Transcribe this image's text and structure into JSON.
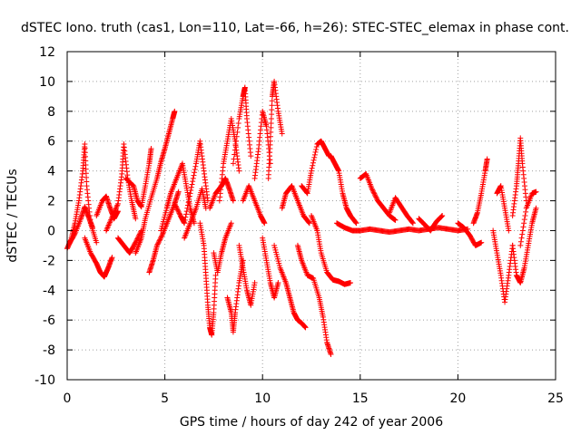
{
  "chart_data": {
    "type": "scatter",
    "title": "dSTEC Iono. truth (cas1, Lon=110, Lat=-66, h=26): STEC-STEC_elemax in phase cont.",
    "xlabel": "GPS time / hours of day 242 of year 2006",
    "ylabel": "dSTEC  / TECUs",
    "xlim": [
      0,
      25
    ],
    "ylim": [
      -10,
      12
    ],
    "x_ticks": [
      0,
      5,
      10,
      15,
      20,
      25
    ],
    "y_ticks": [
      -10,
      -8,
      -6,
      -4,
      -2,
      0,
      2,
      4,
      6,
      8,
      10,
      12
    ],
    "x_tick_labels": [
      "0",
      "5",
      "10",
      "15",
      "20",
      "25"
    ],
    "y_tick_labels": [
      "-10",
      "-8",
      "-6",
      "-4",
      "-2",
      "0",
      "2",
      "4",
      "6",
      "8",
      "10",
      "12"
    ],
    "grid": true,
    "marker": "+",
    "series_color": "#ff0000",
    "series": [
      {
        "tracks": [
          [
            [
              0.0,
              -1.2
            ],
            [
              0.2,
              -0.6
            ],
            [
              0.4,
              0.5
            ],
            [
              0.6,
              2.0
            ],
            [
              0.8,
              4.0
            ],
            [
              0.9,
              5.8
            ],
            [
              1.0,
              3.0
            ],
            [
              1.2,
              0.5
            ],
            [
              1.5,
              -0.8
            ]
          ],
          [
            [
              0.1,
              -0.9
            ],
            [
              0.4,
              -0.2
            ],
            [
              0.7,
              0.8
            ],
            [
              0.9,
              1.6
            ],
            [
              1.1,
              0.9
            ],
            [
              1.3,
              0.2
            ]
          ],
          [
            [
              0.9,
              -0.5
            ],
            [
              1.2,
              -1.5
            ],
            [
              1.5,
              -2.2
            ],
            [
              1.7,
              -2.8
            ],
            [
              1.9,
              -3.1
            ],
            [
              2.1,
              -2.5
            ],
            [
              2.3,
              -1.8
            ]
          ],
          [
            [
              1.5,
              1.0
            ],
            [
              1.8,
              2.0
            ],
            [
              2.0,
              2.3
            ],
            [
              2.2,
              1.5
            ],
            [
              2.4,
              0.8
            ],
            [
              2.6,
              1.3
            ]
          ],
          [
            [
              2.0,
              0.0
            ],
            [
              2.3,
              0.9
            ],
            [
              2.6,
              1.8
            ],
            [
              2.8,
              3.8
            ],
            [
              2.9,
              5.8
            ],
            [
              3.1,
              3.5
            ],
            [
              3.3,
              2.0
            ],
            [
              3.5,
              0.8
            ]
          ],
          [
            [
              2.6,
              -0.5
            ],
            [
              2.9,
              -1.0
            ],
            [
              3.2,
              -1.5
            ],
            [
              3.5,
              -0.8
            ],
            [
              3.8,
              0.0
            ]
          ],
          [
            [
              3.0,
              3.5
            ],
            [
              3.4,
              3.0
            ],
            [
              3.6,
              2.0
            ],
            [
              3.8,
              1.6
            ],
            [
              4.0,
              3.0
            ],
            [
              4.2,
              4.5
            ],
            [
              4.3,
              5.5
            ]
          ],
          [
            [
              3.5,
              -1.5
            ],
            [
              3.8,
              -0.5
            ],
            [
              4.0,
              0.8
            ],
            [
              4.3,
              2.2
            ],
            [
              4.6,
              3.5
            ],
            [
              4.8,
              4.6
            ],
            [
              5.0,
              5.5
            ],
            [
              5.2,
              6.5
            ],
            [
              5.4,
              7.5
            ],
            [
              5.5,
              8.0
            ]
          ],
          [
            [
              4.2,
              -2.8
            ],
            [
              4.4,
              -2.0
            ],
            [
              4.6,
              -1.0
            ],
            [
              4.9,
              -0.2
            ],
            [
              5.2,
              0.8
            ],
            [
              5.5,
              1.8
            ],
            [
              5.7,
              2.6
            ]
          ],
          [
            [
              4.8,
              0.0
            ],
            [
              5.1,
              1.5
            ],
            [
              5.3,
              2.5
            ],
            [
              5.6,
              3.5
            ],
            [
              5.9,
              4.5
            ],
            [
              6.1,
              3.0
            ],
            [
              6.3,
              1.5
            ],
            [
              6.5,
              0.5
            ]
          ],
          [
            [
              5.5,
              1.8
            ],
            [
              5.8,
              1.0
            ],
            [
              6.0,
              0.5
            ],
            [
              6.3,
              2.5
            ],
            [
              6.6,
              4.5
            ],
            [
              6.8,
              6.0
            ],
            [
              7.0,
              4.0
            ],
            [
              7.2,
              2.0
            ]
          ],
          [
            [
              6.0,
              -0.5
            ],
            [
              6.3,
              0.5
            ],
            [
              6.6,
              1.5
            ],
            [
              6.9,
              2.8
            ],
            [
              7.1,
              1.5
            ]
          ],
          [
            [
              6.8,
              0.5
            ],
            [
              7.0,
              -1.0
            ],
            [
              7.1,
              -3.0
            ],
            [
              7.2,
              -5.0
            ],
            [
              7.3,
              -6.5
            ],
            [
              7.4,
              -7.0
            ],
            [
              7.5,
              -5.5
            ],
            [
              7.6,
              -3.0
            ]
          ],
          [
            [
              7.3,
              1.5
            ],
            [
              7.6,
              2.5
            ],
            [
              7.9,
              3.0
            ],
            [
              8.1,
              3.5
            ],
            [
              8.3,
              2.8
            ],
            [
              8.5,
              2.0
            ]
          ],
          [
            [
              7.5,
              -1.5
            ],
            [
              7.7,
              -2.8
            ],
            [
              7.9,
              -1.5
            ],
            [
              8.1,
              -0.5
            ],
            [
              8.4,
              0.5
            ]
          ],
          [
            [
              7.8,
              2.0
            ],
            [
              8.0,
              4.5
            ],
            [
              8.2,
              6.0
            ],
            [
              8.4,
              7.5
            ],
            [
              8.6,
              6.0
            ],
            [
              8.8,
              4.0
            ]
          ],
          [
            [
              8.2,
              -4.5
            ],
            [
              8.4,
              -5.5
            ],
            [
              8.5,
              -6.8
            ],
            [
              8.6,
              -5.5
            ],
            [
              8.8,
              -3.5
            ],
            [
              9.0,
              -2.0
            ]
          ],
          [
            [
              8.5,
              4.5
            ],
            [
              8.8,
              7.5
            ],
            [
              9.0,
              9.0
            ],
            [
              9.1,
              9.6
            ],
            [
              9.2,
              7.5
            ],
            [
              9.4,
              5.0
            ]
          ],
          [
            [
              8.8,
              -1.0
            ],
            [
              9.0,
              -2.5
            ],
            [
              9.2,
              -4.0
            ],
            [
              9.4,
              -5.0
            ],
            [
              9.6,
              -3.5
            ]
          ],
          [
            [
              9.0,
              2.0
            ],
            [
              9.3,
              3.0
            ],
            [
              9.6,
              2.0
            ],
            [
              9.9,
              1.0
            ],
            [
              10.1,
              0.5
            ]
          ],
          [
            [
              9.6,
              3.5
            ],
            [
              9.8,
              5.5
            ],
            [
              10.0,
              8.0
            ],
            [
              10.2,
              7.0
            ],
            [
              10.4,
              4.5
            ]
          ],
          [
            [
              10.0,
              -0.5
            ],
            [
              10.2,
              -2.0
            ],
            [
              10.4,
              -3.5
            ],
            [
              10.6,
              -4.5
            ],
            [
              10.8,
              -3.5
            ]
          ],
          [
            [
              10.3,
              3.5
            ],
            [
              10.4,
              6.0
            ],
            [
              10.5,
              9.0
            ],
            [
              10.6,
              10.0
            ],
            [
              10.8,
              8.0
            ],
            [
              11.0,
              6.5
            ]
          ],
          [
            [
              10.6,
              -1.0
            ],
            [
              10.9,
              -2.5
            ],
            [
              11.2,
              -3.5
            ],
            [
              11.4,
              -4.5
            ],
            [
              11.6,
              -5.5
            ],
            [
              11.8,
              -6.0
            ],
            [
              12.0,
              -6.2
            ],
            [
              12.2,
              -6.5
            ]
          ],
          [
            [
              11.0,
              1.5
            ],
            [
              11.2,
              2.5
            ],
            [
              11.5,
              3.0
            ],
            [
              11.8,
              2.0
            ],
            [
              12.1,
              1.0
            ],
            [
              12.4,
              0.5
            ]
          ],
          [
            [
              11.8,
              -1.0
            ],
            [
              12.0,
              -2.0
            ],
            [
              12.3,
              -3.0
            ],
            [
              12.6,
              -3.2
            ],
            [
              12.9,
              -4.5
            ],
            [
              13.1,
              -5.8
            ],
            [
              13.3,
              -7.5
            ],
            [
              13.5,
              -8.3
            ]
          ],
          [
            [
              12.0,
              3.0
            ],
            [
              12.3,
              2.5
            ],
            [
              12.5,
              4.0
            ],
            [
              12.8,
              5.8
            ],
            [
              13.0,
              6.0
            ],
            [
              13.2,
              5.5
            ],
            [
              13.4,
              5.0
            ]
          ],
          [
            [
              12.5,
              1.0
            ],
            [
              12.8,
              0.0
            ],
            [
              13.0,
              -1.5
            ],
            [
              13.3,
              -2.8
            ],
            [
              13.6,
              -3.3
            ],
            [
              13.9,
              -3.4
            ],
            [
              14.2,
              -3.6
            ],
            [
              14.5,
              -3.5
            ]
          ],
          [
            [
              13.5,
              5.0
            ],
            [
              13.7,
              4.5
            ],
            [
              13.9,
              4.0
            ],
            [
              14.1,
              2.5
            ],
            [
              14.3,
              1.5
            ],
            [
              14.5,
              1.0
            ],
            [
              14.8,
              0.5
            ]
          ],
          [
            [
              13.8,
              0.5
            ],
            [
              14.2,
              0.2
            ],
            [
              14.6,
              0.0
            ],
            [
              15.0,
              0.0
            ],
            [
              15.5,
              0.1
            ],
            [
              16.0,
              0.0
            ],
            [
              16.5,
              -0.1
            ],
            [
              17.0,
              0.0
            ],
            [
              17.5,
              0.1
            ],
            [
              18.0,
              0.0
            ],
            [
              18.5,
              0.1
            ],
            [
              19.0,
              0.2
            ],
            [
              19.5,
              0.1
            ],
            [
              20.0,
              0.0
            ],
            [
              20.5,
              0.1
            ]
          ],
          [
            [
              15.0,
              3.5
            ],
            [
              15.3,
              3.8
            ],
            [
              15.6,
              2.8
            ],
            [
              15.9,
              2.0
            ],
            [
              16.2,
              1.5
            ],
            [
              16.5,
              1.0
            ],
            [
              16.8,
              0.7
            ]
          ],
          [
            [
              16.5,
              1.2
            ],
            [
              16.8,
              2.2
            ],
            [
              17.1,
              1.6
            ],
            [
              17.4,
              1.0
            ],
            [
              17.7,
              0.5
            ]
          ],
          [
            [
              18.0,
              0.8
            ],
            [
              18.3,
              0.4
            ],
            [
              18.6,
              0.0
            ],
            [
              18.9,
              0.6
            ],
            [
              19.2,
              1.0
            ]
          ],
          [
            [
              20.0,
              0.5
            ],
            [
              20.3,
              0.2
            ],
            [
              20.6,
              -0.3
            ],
            [
              20.9,
              -1.0
            ],
            [
              21.2,
              -0.8
            ]
          ],
          [
            [
              20.8,
              0.5
            ],
            [
              21.0,
              1.2
            ],
            [
              21.2,
              2.5
            ],
            [
              21.4,
              4.0
            ],
            [
              21.5,
              4.8
            ]
          ],
          [
            [
              21.8,
              0.0
            ],
            [
              22.0,
              -1.5
            ],
            [
              22.2,
              -3.0
            ],
            [
              22.4,
              -4.8
            ],
            [
              22.6,
              -3.0
            ],
            [
              22.8,
              -1.0
            ]
          ],
          [
            [
              22.0,
              2.5
            ],
            [
              22.2,
              3.0
            ],
            [
              22.4,
              1.5
            ],
            [
              22.6,
              0.0
            ]
          ],
          [
            [
              22.8,
              1.0
            ],
            [
              23.0,
              3.0
            ],
            [
              23.1,
              4.5
            ],
            [
              23.2,
              6.2
            ],
            [
              23.3,
              4.5
            ],
            [
              23.5,
              2.0
            ]
          ],
          [
            [
              22.8,
              -1.0
            ],
            [
              23.0,
              -3.0
            ],
            [
              23.2,
              -3.5
            ],
            [
              23.4,
              -2.5
            ],
            [
              23.6,
              -1.0
            ],
            [
              23.8,
              0.5
            ],
            [
              24.0,
              1.5
            ]
          ],
          [
            [
              23.2,
              -1.0
            ],
            [
              23.5,
              1.5
            ],
            [
              23.8,
              2.5
            ],
            [
              24.0,
              2.6
            ]
          ]
        ]
      }
    ]
  }
}
